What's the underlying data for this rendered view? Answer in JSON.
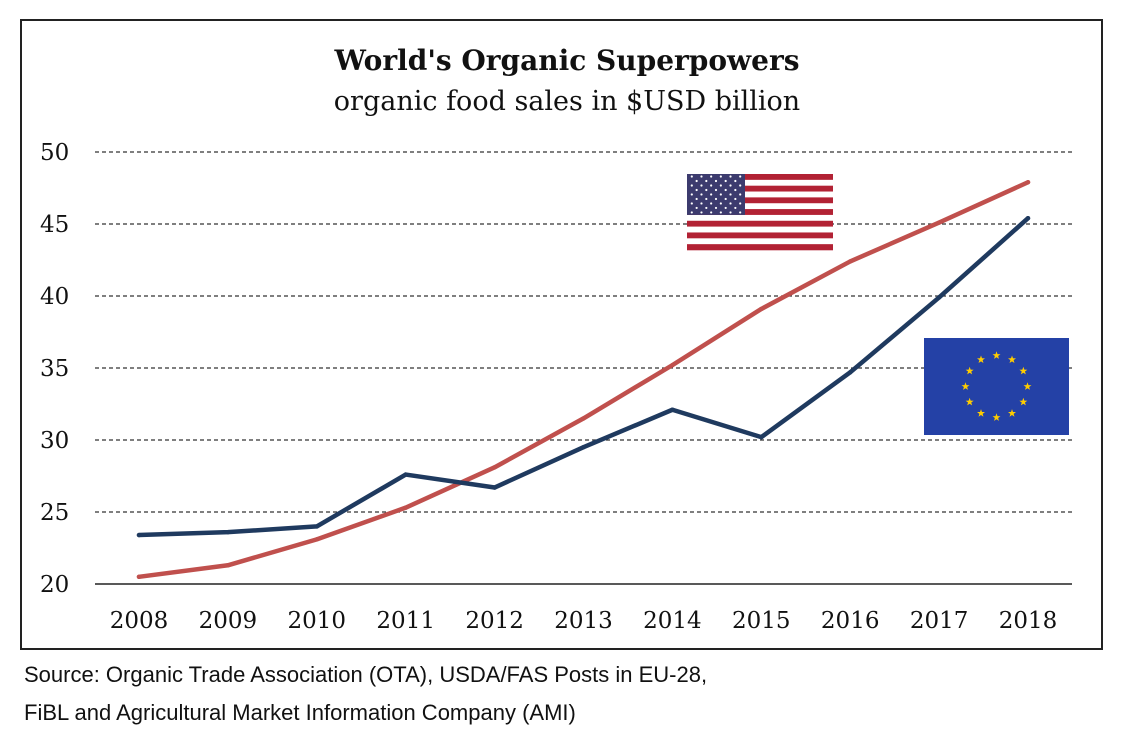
{
  "chart_data": {
    "type": "line",
    "title": "World's  Organic Superpowers",
    "subtitle": "organic food sales in $USD  billion",
    "categories": [
      "2008",
      "2009",
      "2010",
      "2011",
      "2012",
      "2013",
      "2014",
      "2015",
      "2016",
      "2017",
      "2018"
    ],
    "series": [
      {
        "color": "#c0504d",
        "flag": "usa-flag",
        "values": [
          20.5,
          21.3,
          23.1,
          25.3,
          28.1,
          31.5,
          35.2,
          39.1,
          42.4,
          45.1,
          47.9
        ]
      },
      {
        "color": "#1f3a5f",
        "flag": "eu-flag",
        "values": [
          23.4,
          23.6,
          24.0,
          27.6,
          26.7,
          29.5,
          32.1,
          30.2,
          34.7,
          39.9,
          45.4
        ]
      }
    ],
    "ylim": [
      20,
      50
    ],
    "yticks": [
      20,
      25,
      30,
      35,
      40,
      45,
      50
    ],
    "grid": true,
    "xlabel": "",
    "ylabel": ""
  },
  "source": {
    "line1": "Source: Organic Trade Association (OTA), USDA/FAS Posts in EU-28,",
    "line2": "FiBL and Agricultural Market Information Company (AMI)"
  }
}
